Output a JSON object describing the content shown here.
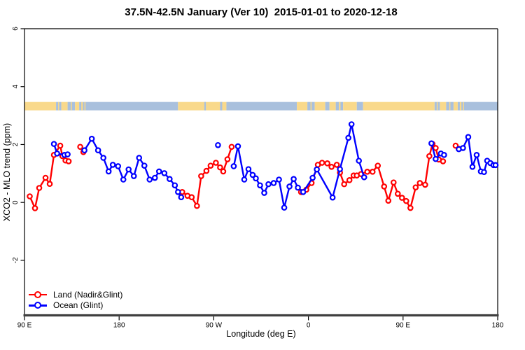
{
  "title": "37.5N-42.5N January (Ver 10)  2015-01-01 to 2020-12-18",
  "x_axis": {
    "label": "Longitude (deg E)"
  },
  "y_axis": {
    "label": "XCO2 - MLO trend (ppm)"
  },
  "legend": {
    "items": [
      {
        "label": "Land (Nadir&Glint)",
        "color": "#ff0000"
      },
      {
        "label": "Ocean (Glint)",
        "color": "#0000ff"
      }
    ]
  },
  "chart_data": {
    "type": "line",
    "title": "37.5N-42.5N January (Ver 10)  2015-01-01 to 2020-12-18",
    "xlabel": "Longitude (deg E)",
    "ylabel": "XCO2 - MLO trend (ppm)",
    "xlim": [
      90,
      540
    ],
    "ylim": [
      -3.9,
      6.0
    ],
    "grid": false,
    "legend_position": "bottom-left-inside",
    "x_ticks": [
      {
        "lon": 90,
        "label": "90 E"
      },
      {
        "lon": 180,
        "label": "180"
      },
      {
        "lon": 270,
        "label": "90 W"
      },
      {
        "lon": 360,
        "label": "0"
      },
      {
        "lon": 450,
        "label": "90 E"
      },
      {
        "lon": 540,
        "label": "180"
      }
    ],
    "y_ticks": [
      {
        "v": 6,
        "label": "6"
      },
      {
        "v": 4,
        "label": "4"
      },
      {
        "v": 2,
        "label": "2"
      },
      {
        "v": 0,
        "label": "0"
      },
      {
        "v": -2,
        "label": "-2"
      }
    ],
    "map_band": {
      "description": "land/ocean mask strip along 37.5N-42.5N",
      "value_top": 3.47,
      "value_bottom": 3.18,
      "land_color": "#f9d98b",
      "ocean_color": "#a9c0dd",
      "segments": [
        {
          "from": 90,
          "to": 120,
          "type": "land"
        },
        {
          "from": 120,
          "to": 125,
          "type": "ocean"
        },
        {
          "from": 122,
          "to": 123,
          "type": "land"
        },
        {
          "from": 125,
          "to": 131,
          "type": "land"
        },
        {
          "from": 131,
          "to": 138,
          "type": "ocean"
        },
        {
          "from": 134,
          "to": 135,
          "type": "land"
        },
        {
          "from": 138,
          "to": 142,
          "type": "land"
        },
        {
          "from": 142,
          "to": 236,
          "type": "ocean"
        },
        {
          "from": 144,
          "to": 145.5,
          "type": "land"
        },
        {
          "from": 147,
          "to": 148,
          "type": "land"
        },
        {
          "from": 236,
          "to": 282,
          "type": "land"
        },
        {
          "from": 261,
          "to": 262.5,
          "type": "ocean"
        },
        {
          "from": 276,
          "to": 278,
          "type": "ocean"
        },
        {
          "from": 282,
          "to": 349,
          "type": "ocean"
        },
        {
          "from": 349,
          "to": 359,
          "type": "land"
        },
        {
          "from": 359,
          "to": 366,
          "type": "ocean"
        },
        {
          "from": 362,
          "to": 363,
          "type": "land"
        },
        {
          "from": 366,
          "to": 376,
          "type": "land"
        },
        {
          "from": 376,
          "to": 380,
          "type": "ocean"
        },
        {
          "from": 380,
          "to": 386,
          "type": "land"
        },
        {
          "from": 386,
          "to": 393,
          "type": "ocean"
        },
        {
          "from": 389,
          "to": 390.5,
          "type": "land"
        },
        {
          "from": 393,
          "to": 406,
          "type": "land"
        },
        {
          "from": 406,
          "to": 412,
          "type": "ocean"
        },
        {
          "from": 412,
          "to": 480,
          "type": "land"
        },
        {
          "from": 480,
          "to": 485,
          "type": "ocean"
        },
        {
          "from": 482,
          "to": 483,
          "type": "land"
        },
        {
          "from": 485,
          "to": 491,
          "type": "land"
        },
        {
          "from": 491,
          "to": 498,
          "type": "ocean"
        },
        {
          "from": 494,
          "to": 495,
          "type": "land"
        },
        {
          "from": 498,
          "to": 502,
          "type": "land"
        },
        {
          "from": 502,
          "to": 540,
          "type": "ocean"
        },
        {
          "from": 504,
          "to": 505.5,
          "type": "land"
        },
        {
          "from": 507,
          "to": 508,
          "type": "land"
        }
      ]
    },
    "series": [
      {
        "name": "Land (Nadir&Glint)",
        "color": "#ff0000",
        "marker": "open-circle",
        "segments": [
          [
            [
              95,
              0.21
            ],
            [
              100,
              -0.2
            ],
            [
              104,
              0.5
            ],
            [
              110,
              0.85
            ],
            [
              114,
              0.64
            ],
            [
              118,
              1.64
            ],
            [
              124,
              1.96
            ],
            [
              126,
              1.6
            ],
            [
              129,
              1.45
            ],
            [
              132,
              1.42
            ]
          ],
          [
            [
              143,
              1.92
            ],
            [
              146,
              1.74
            ]
          ],
          [
            [
              240,
              0.36
            ],
            [
              245,
              0.23
            ],
            [
              249,
              0.18
            ],
            [
              254,
              -0.12
            ],
            [
              258,
              0.91
            ],
            [
              263,
              1.09
            ],
            [
              267,
              1.27
            ],
            [
              272,
              1.37
            ],
            [
              276,
              1.21
            ],
            [
              279,
              1.07
            ],
            [
              283,
              1.49
            ],
            [
              287,
              1.92
            ]
          ],
          [
            [
              353,
              0.36
            ],
            [
              358,
              0.44
            ],
            [
              363,
              0.67
            ],
            [
              369,
              1.3
            ],
            [
              373,
              1.37
            ],
            [
              378,
              1.35
            ],
            [
              382,
              1.23
            ],
            [
              387,
              1.3
            ],
            [
              390,
              1.03
            ],
            [
              394,
              0.63
            ],
            [
              399,
              0.77
            ],
            [
              403,
              0.93
            ],
            [
              406,
              0.93
            ],
            [
              410,
              0.98
            ],
            [
              416,
              1.06
            ],
            [
              421,
              1.06
            ],
            [
              426,
              1.27
            ],
            [
              432,
              0.55
            ],
            [
              436,
              0.06
            ],
            [
              441,
              0.69
            ],
            [
              445,
              0.3
            ],
            [
              449,
              0.16
            ],
            [
              453,
              0.05
            ],
            [
              457,
              -0.19
            ],
            [
              462,
              0.52
            ],
            [
              466,
              0.67
            ],
            [
              471,
              0.61
            ],
            [
              475,
              1.6
            ],
            [
              478,
              2.02
            ],
            [
              481,
              1.88
            ],
            [
              484,
              1.48
            ],
            [
              488,
              1.42
            ]
          ],
          [
            [
              500,
              1.96
            ],
            [
              503,
              1.85
            ]
          ]
        ]
      },
      {
        "name": "Ocean (Glint)",
        "color": "#0000ff",
        "marker": "open-circle",
        "segments": [
          [
            [
              118,
              2.02
            ],
            [
              121,
              1.69
            ],
            [
              128,
              1.64
            ],
            [
              131,
              1.66
            ]
          ],
          [
            [
              147,
              1.8
            ],
            [
              154,
              2.2
            ],
            [
              160,
              1.8
            ],
            [
              165,
              1.54
            ],
            [
              170,
              1.07
            ],
            [
              174,
              1.3
            ],
            [
              179,
              1.25
            ],
            [
              184,
              0.79
            ],
            [
              189,
              1.14
            ],
            [
              194,
              0.91
            ],
            [
              199,
              1.54
            ],
            [
              204,
              1.27
            ],
            [
              209,
              0.79
            ],
            [
              214,
              0.85
            ],
            [
              218,
              1.07
            ],
            [
              223,
              1.01
            ],
            [
              228,
              0.81
            ],
            [
              233,
              0.59
            ],
            [
              236,
              0.36
            ],
            [
              239,
              0.18
            ]
          ],
          [
            [
              274,
              1.98
            ]
          ],
          [
            [
              289,
              1.25
            ],
            [
              293,
              1.94
            ],
            [
              299,
              0.79
            ],
            [
              303,
              1.15
            ],
            [
              307,
              0.95
            ],
            [
              310,
              0.83
            ],
            [
              314,
              0.59
            ],
            [
              318,
              0.33
            ],
            [
              322,
              0.63
            ],
            [
              327,
              0.67
            ],
            [
              332,
              0.79
            ],
            [
              337,
              -0.18
            ],
            [
              342,
              0.55
            ],
            [
              346,
              0.81
            ],
            [
              350,
              0.51
            ],
            [
              355,
              0.36
            ],
            [
              364,
              0.85
            ],
            [
              368,
              1.14
            ],
            [
              383,
              0.17
            ],
            [
              390,
              1.15
            ],
            [
              398,
              2.23
            ],
            [
              401,
              2.7
            ],
            [
              408,
              1.44
            ],
            [
              413,
              0.87
            ]
          ],
          [
            [
              477,
              2.04
            ],
            [
              481,
              1.5
            ],
            [
              486,
              1.69
            ],
            [
              489,
              1.64
            ]
          ],
          [
            [
              503,
              1.84
            ],
            [
              507,
              1.88
            ],
            [
              512,
              2.26
            ],
            [
              516,
              1.23
            ],
            [
              520,
              1.64
            ],
            [
              524,
              1.07
            ],
            [
              527,
              1.05
            ],
            [
              530,
              1.44
            ],
            [
              533,
              1.36
            ],
            [
              536,
              1.29
            ],
            [
              538,
              1.29
            ]
          ]
        ]
      }
    ]
  }
}
